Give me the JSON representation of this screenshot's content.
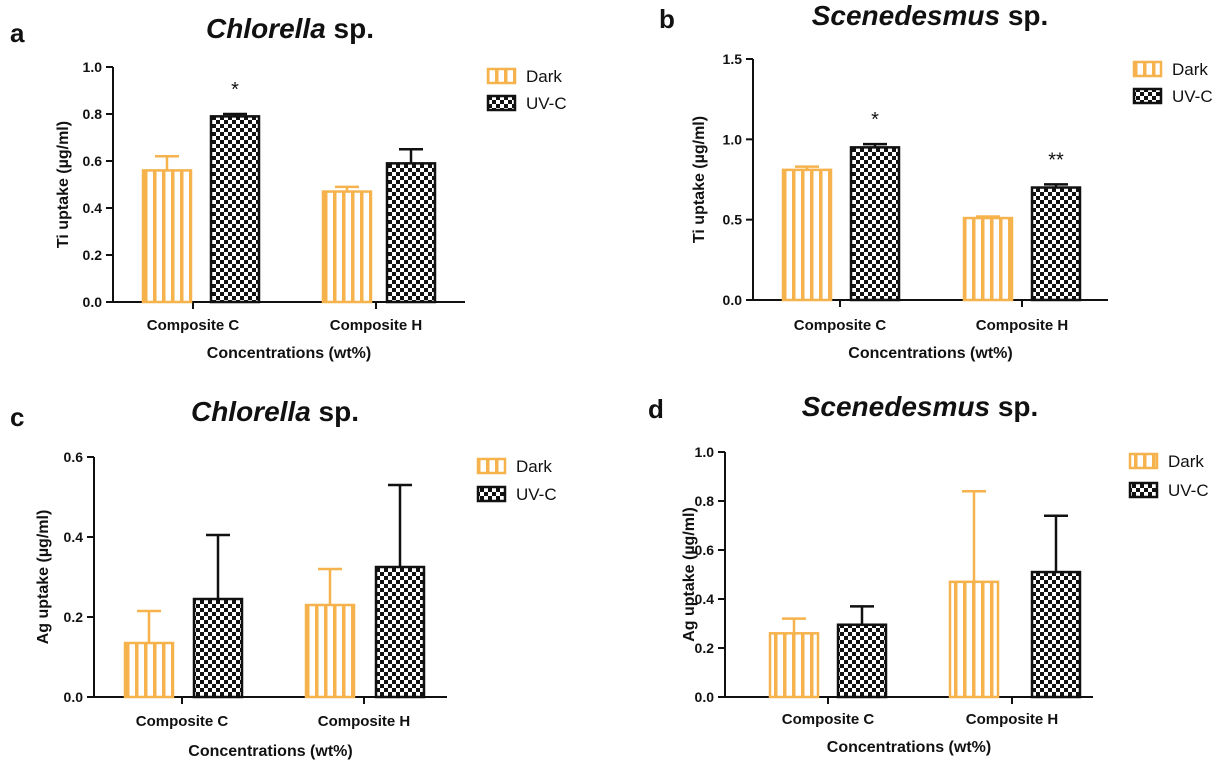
{
  "colors": {
    "dark": "#f5b24d",
    "uvc": "#111111",
    "axis": "#111111"
  },
  "chart_data": [
    {
      "panel": "a",
      "type": "bar",
      "title_italic": "Chlorella",
      "title_rest": " sp.",
      "xlabel": "Concentrations (wt%)",
      "ylabel": "Ti uptake (µg/ml)",
      "categories": [
        "Composite C",
        "Composite H"
      ],
      "ylim": [
        0,
        1.0
      ],
      "yticks": [
        0.0,
        0.2,
        0.4,
        0.6,
        0.8,
        1.0
      ],
      "ytick_labels": [
        "0.0",
        "0.2",
        "0.4",
        "0.6",
        "0.8",
        "1.0"
      ],
      "series": [
        {
          "name": "Dark",
          "values": [
            0.56,
            0.47
          ],
          "errors": [
            0.06,
            0.02
          ]
        },
        {
          "name": "UV-C",
          "values": [
            0.79,
            0.59
          ],
          "errors": [
            0.01,
            0.06
          ]
        }
      ],
      "annotations": [
        {
          "category": 0,
          "series": 1,
          "text": "*"
        }
      ]
    },
    {
      "panel": "b",
      "type": "bar",
      "title_italic": "Scenedesmus",
      "title_rest": " sp.",
      "xlabel": "Concentrations (wt%)",
      "ylabel": "Ti uptake (µg/ml)",
      "categories": [
        "Composite C",
        "Composite H"
      ],
      "ylim": [
        0,
        1.5
      ],
      "yticks": [
        0.0,
        0.5,
        1.0,
        1.5
      ],
      "ytick_labels": [
        "0.0",
        "0.5",
        "1.0",
        "1.5"
      ],
      "series": [
        {
          "name": "Dark",
          "values": [
            0.81,
            0.51
          ],
          "errors": [
            0.02,
            0.01
          ]
        },
        {
          "name": "UV-C",
          "values": [
            0.95,
            0.7
          ],
          "errors": [
            0.02,
            0.02
          ]
        }
      ],
      "annotations": [
        {
          "category": 0,
          "series": 1,
          "text": "*"
        },
        {
          "category": 1,
          "series": 1,
          "text": "**"
        }
      ]
    },
    {
      "panel": "c",
      "type": "bar",
      "title_italic": "Chlorella",
      "title_rest": " sp.",
      "xlabel": "Concentrations (wt%)",
      "ylabel": "Ag uptake (µg/ml)",
      "categories": [
        "Composite C",
        "Composite H"
      ],
      "ylim": [
        0,
        0.6
      ],
      "yticks": [
        0.0,
        0.2,
        0.4,
        0.6
      ],
      "ytick_labels": [
        "0.0",
        "0.2",
        "0.4",
        "0.6"
      ],
      "series": [
        {
          "name": "Dark",
          "values": [
            0.135,
            0.23
          ],
          "errors": [
            0.08,
            0.09
          ]
        },
        {
          "name": "UV-C",
          "values": [
            0.245,
            0.325
          ],
          "errors": [
            0.16,
            0.205
          ]
        }
      ],
      "annotations": []
    },
    {
      "panel": "d",
      "type": "bar",
      "title_italic": "Scenedesmus",
      "title_rest": " sp.",
      "xlabel": "Concentrations (wt%)",
      "ylabel": "Ag uptake (µg/ml)",
      "categories": [
        "Composite C",
        "Composite H"
      ],
      "ylim": [
        0,
        1.0
      ],
      "yticks": [
        0.0,
        0.2,
        0.4,
        0.6,
        0.8,
        1.0
      ],
      "ytick_labels": [
        "0.0",
        "0.2",
        "0.4",
        "0.6",
        "0.8",
        "1.0"
      ],
      "series": [
        {
          "name": "Dark",
          "values": [
            0.26,
            0.47
          ],
          "errors": [
            0.06,
            0.37
          ]
        },
        {
          "name": "UV-C",
          "values": [
            0.295,
            0.51
          ],
          "errors": [
            0.075,
            0.23
          ]
        }
      ],
      "annotations": []
    }
  ]
}
